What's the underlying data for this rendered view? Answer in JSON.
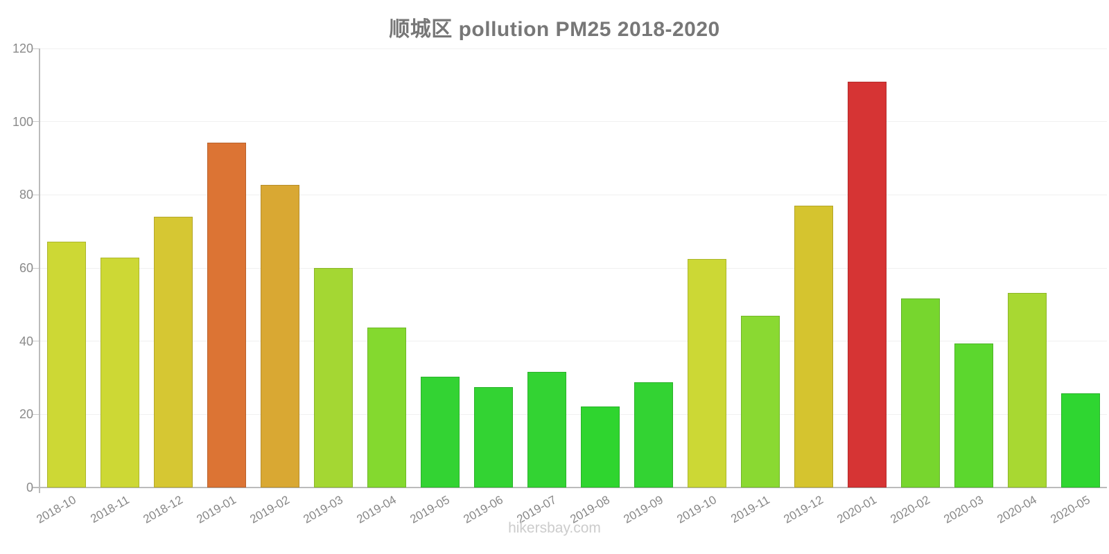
{
  "page": {
    "title": "顺城区 pollution PM25 2018-2020",
    "watermark": "hikersbay.com"
  },
  "chart_data": {
    "type": "bar",
    "title": "顺城区 pollution PM25 2018-2020",
    "xlabel": "",
    "ylabel": "",
    "ylim": [
      0,
      120
    ],
    "yticks": [
      0,
      20,
      40,
      60,
      80,
      100,
      120
    ],
    "grid": true,
    "legend": false,
    "watermark": "hikersbay.com",
    "categories": [
      "2018-10",
      "2018-11",
      "2018-12",
      "2019-01",
      "2019-02",
      "2019-03",
      "2019-04",
      "2019-05",
      "2019-06",
      "2019-07",
      "2019-08",
      "2019-09",
      "2019-10",
      "2019-11",
      "2019-12",
      "2020-01",
      "2020-02",
      "2020-03",
      "2020-04",
      "2020-05"
    ],
    "values": [
      67.2,
      62.8,
      74.0,
      94.3,
      82.8,
      60.0,
      43.8,
      30.2,
      27.5,
      31.6,
      22.2,
      28.7,
      62.5,
      46.9,
      77.1,
      111.0,
      51.6,
      39.4,
      53.2,
      25.7
    ],
    "bar_colors": [
      "#cdd835",
      "#cdd835",
      "#d6c733",
      "#dc7434",
      "#d9a833",
      "#a4d733",
      "#84d92f",
      "#33d333",
      "#33d333",
      "#33d333",
      "#2fd52f",
      "#33d333",
      "#ccd835",
      "#8ad932",
      "#d5c42f",
      "#d63434",
      "#77d62e",
      "#5cd72e",
      "#a8d832",
      "#2fd631"
    ],
    "colors": {
      "axis": "#bbbbbb",
      "gridline": "#f0f0f0",
      "tick_labels": "#8a8a8a",
      "title": "#777777",
      "watermark": "#cccccc"
    }
  }
}
